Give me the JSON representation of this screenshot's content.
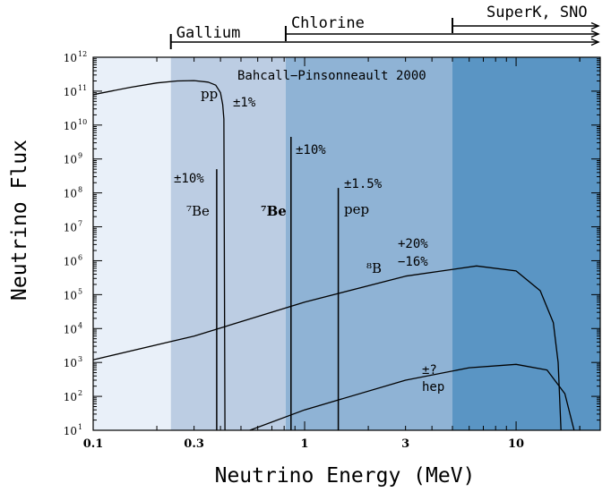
{
  "chart_data": {
    "type": "line",
    "title": "Bahcall−Pinsonneault 2000",
    "xlabel": "Neutrino Energy (MeV)",
    "ylabel": "Neutrino Flux",
    "xscale": "log",
    "yscale": "log",
    "xlim": [
      0.1,
      25
    ],
    "ylim": [
      10,
      1000000000000.0
    ],
    "grid": false,
    "x_ticks": [
      "0.1",
      "0.3",
      "1",
      "3",
      "10"
    ],
    "y_ticks": [
      "10",
      "10",
      "10",
      "10",
      "10",
      "10",
      "10",
      "10",
      "10",
      "10",
      "10",
      "10"
    ],
    "y_tick_exponents": [
      "1",
      "2",
      "3",
      "4",
      "5",
      "6",
      "7",
      "8",
      "9",
      "10",
      "11",
      "12"
    ],
    "regions": [
      {
        "label": "",
        "x": [
          0.1,
          0.233
        ],
        "color": "#e9f0f9"
      },
      {
        "label": "Gallium",
        "x": [
          0.233,
          0.814
        ],
        "color": "#bccde3"
      },
      {
        "label": "Chlorine",
        "x": [
          0.814,
          5.0
        ],
        "color": "#8fb3d5"
      },
      {
        "label": "SuperK, SNO",
        "x": [
          5.0,
          25
        ],
        "color": "#5a95c4"
      }
    ],
    "series": [
      {
        "name": "pp",
        "uncertainty": "±1%",
        "x": [
          0.1,
          0.15,
          0.2,
          0.25,
          0.3,
          0.35,
          0.38,
          0.4,
          0.41,
          0.415,
          0.42
        ],
        "y": [
          79000000000.0,
          130000000000.0,
          175000000000.0,
          200000000000.0,
          205000000000.0,
          185000000000.0,
          150000000000.0,
          90000000000.0,
          40000000000.0,
          15000000000.0,
          10
        ]
      },
      {
        "name": "8B",
        "uncertainty": "+20% −16%",
        "x": [
          0.1,
          0.3,
          1,
          3,
          6.5,
          10,
          13,
          15,
          15.8,
          16.3
        ],
        "y": [
          1200.0,
          6000.0,
          60000.0,
          350000.0,
          700000.0,
          500000.0,
          130000.0,
          15000.0,
          1000.0,
          10
        ]
      },
      {
        "name": "hep",
        "uncertainty": "±?",
        "x": [
          0.55,
          1,
          3,
          6,
          10,
          14,
          17,
          18.5,
          18.8
        ],
        "y": [
          10,
          40,
          300,
          700,
          880,
          600,
          120,
          15,
          10
        ]
      },
      {
        "name": "7Be",
        "uncertainty": "±10%",
        "x": [
          0.384,
          0.384
        ],
        "y": [
          10,
          500000000.0
        ]
      },
      {
        "name": "7Be",
        "uncertainty": "",
        "x": [
          0.862,
          0.862
        ],
        "y": [
          10,
          4500000000.0
        ]
      },
      {
        "name": "pep",
        "uncertainty": "±1.5%",
        "x": [
          1.442,
          1.442
        ],
        "y": [
          10,
          140000000.0
        ]
      }
    ],
    "labels": {
      "pp": "pp",
      "pp_unc": "±1%",
      "be7_low": "⁷Be",
      "be7_low_unc": "±10%",
      "be7_high": "⁷Be",
      "be7_high_unc": "±10%",
      "pep": "pep",
      "pep_unc": "±1.5%",
      "b8": "⁸B",
      "b8_unc_up": "+20%",
      "b8_unc_down": "−16%",
      "hep": "hep",
      "hep_unc": "±?"
    },
    "colors": {
      "line": "#000000",
      "below_range": "#e9f0f9",
      "gallium": "#bccde3",
      "chlorine": "#8fb3d5",
      "superk": "#5a95c4"
    }
  }
}
